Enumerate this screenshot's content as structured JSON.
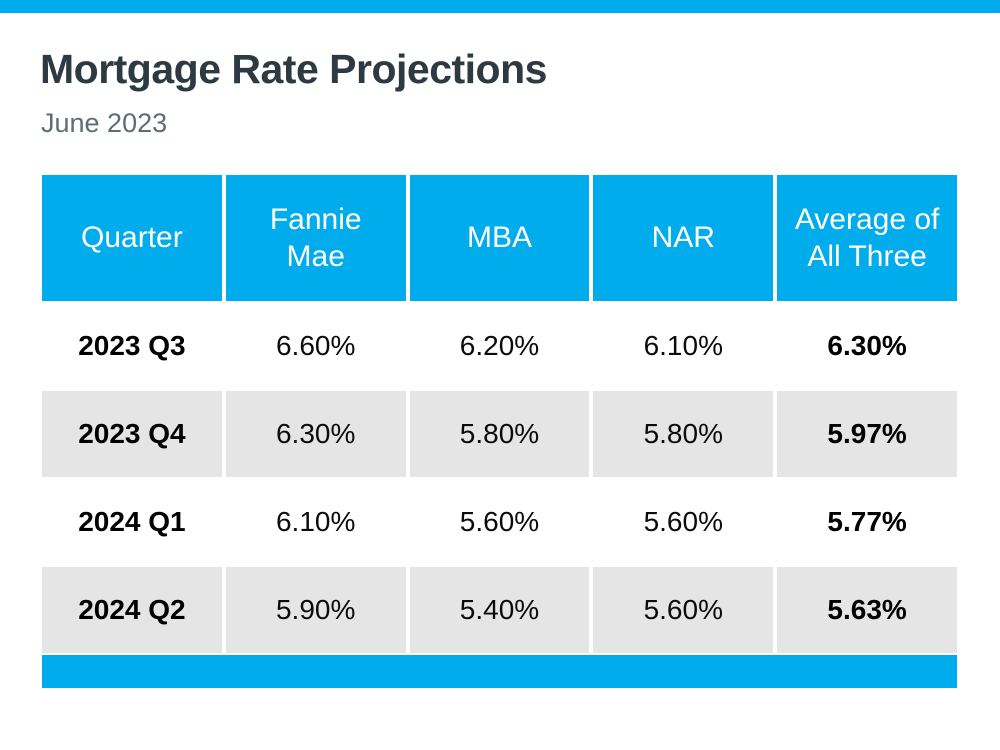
{
  "page": {
    "title": "Mortgage Rate Projections",
    "subtitle": "June 2023"
  },
  "colors": {
    "accent_blue": "#00ACEC",
    "row_alt_gray": "#E6E5E5",
    "title_color": "#2E3A41",
    "subtitle_color": "#5E6D74",
    "header_text": "#FFFFFF"
  },
  "table": {
    "header_labels": [
      "Quarter",
      "Fannie\nMae",
      "MBA",
      "NAR",
      "Average of\nAll Three"
    ],
    "rows": [
      [
        "2023 Q3",
        "6.60%",
        "6.20%",
        "6.10%",
        "6.30%"
      ],
      [
        "2023 Q4",
        "6.30%",
        "5.80%",
        "5.80%",
        "5.97%"
      ],
      [
        "2024 Q1",
        "6.10%",
        "5.60%",
        "5.60%",
        "5.77%"
      ],
      [
        "2024 Q2",
        "5.90%",
        "5.40%",
        "5.60%",
        "5.63%"
      ]
    ]
  },
  "chart_data": {
    "type": "table",
    "title": "Mortgage Rate Projections",
    "subtitle": "June 2023",
    "columns": [
      "Quarter",
      "Fannie Mae",
      "MBA",
      "NAR",
      "Average of All Three"
    ],
    "units": "percent",
    "rows": [
      {
        "quarter": "2023 Q3",
        "fannie_mae": 6.6,
        "mba": 6.2,
        "nar": 6.1,
        "average_of_all_three": 6.3
      },
      {
        "quarter": "2023 Q4",
        "fannie_mae": 6.3,
        "mba": 5.8,
        "nar": 5.8,
        "average_of_all_three": 5.97
      },
      {
        "quarter": "2024 Q1",
        "fannie_mae": 6.1,
        "mba": 5.6,
        "nar": 5.6,
        "average_of_all_three": 5.77
      },
      {
        "quarter": "2024 Q2",
        "fannie_mae": 5.9,
        "mba": 5.4,
        "nar": 5.6,
        "average_of_all_three": 5.63
      }
    ]
  }
}
